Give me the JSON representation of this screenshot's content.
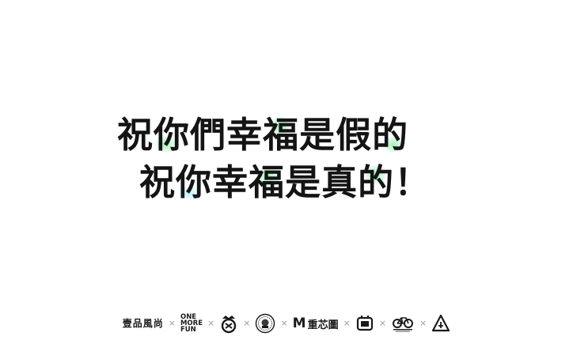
{
  "headline": {
    "line1": [
      "祝",
      "你",
      "們",
      "幸",
      "福",
      "是",
      "假",
      "的"
    ],
    "line2": [
      "祝",
      "你",
      "幸",
      "福",
      "是",
      "真",
      "的",
      "！"
    ]
  },
  "footer": {
    "separator": "×",
    "logos": [
      {
        "type": "text",
        "name": "yipin-logo",
        "text": "壹品風尚"
      },
      {
        "type": "text",
        "name": "one-more-fun-logo",
        "lines": [
          "ONE",
          "MORE",
          "FUN"
        ]
      },
      {
        "type": "icon",
        "name": "crown-emblem-icon"
      },
      {
        "type": "icon",
        "name": "round-badge-icon"
      },
      {
        "type": "text",
        "name": "m-brand-logo",
        "mark": "M",
        "text": "重芯圖"
      },
      {
        "type": "icon",
        "name": "frame-emblem-icon"
      },
      {
        "type": "icon",
        "name": "bicycle-icon"
      },
      {
        "type": "icon",
        "name": "triangle-mark-icon"
      }
    ]
  }
}
